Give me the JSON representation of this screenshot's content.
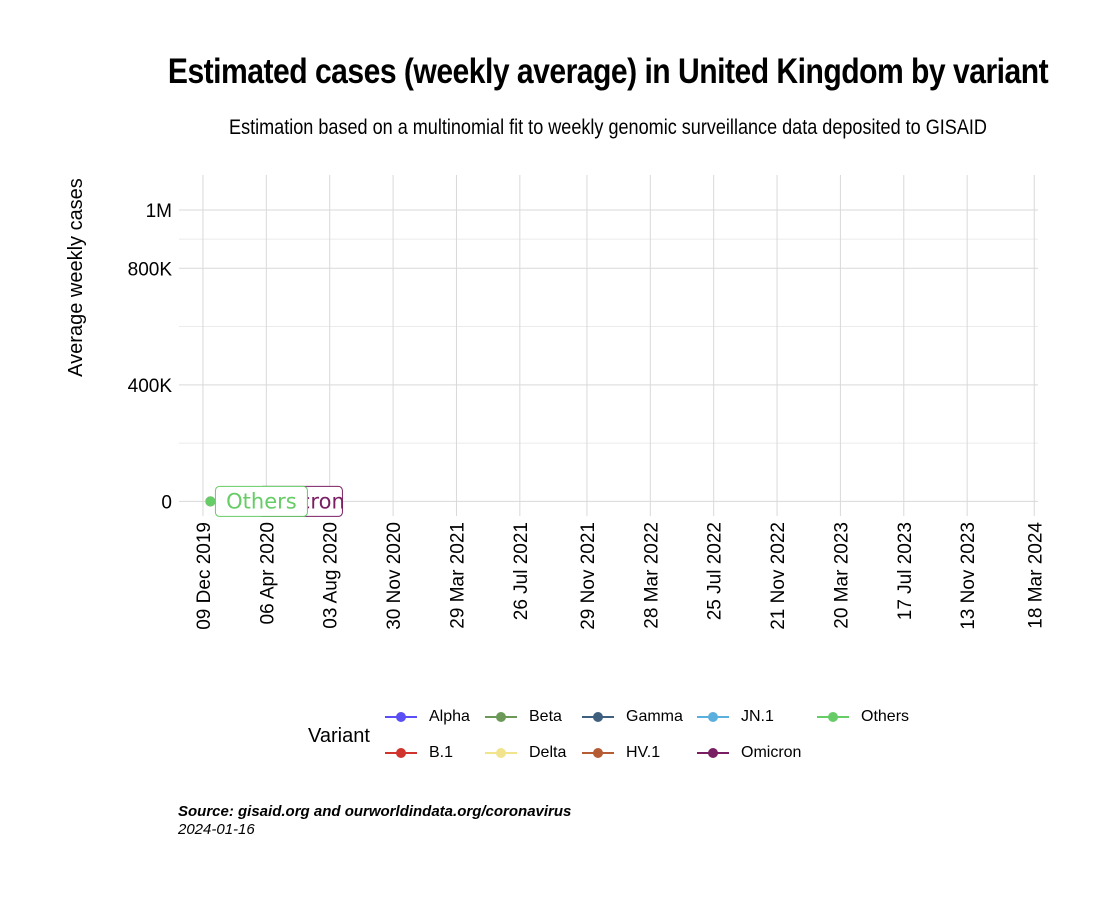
{
  "chart_data": {
    "type": "line",
    "title": "Estimated cases (weekly average) in United Kingdom by variant",
    "subtitle": "Estimation based on a multinomial fit to weekly genomic surveillance data deposited to GISAID",
    "ylabel": "Average weekly cases",
    "xlabel": "",
    "y_ticks": [
      "0",
      "400K",
      "800K",
      "1M"
    ],
    "y_tick_values": [
      0,
      400000,
      800000,
      1000000
    ],
    "ylim": [
      -50000,
      1120000
    ],
    "x_ticks": [
      "09 Dec 2019",
      "06 Apr 2020",
      "03 Aug 2020",
      "30 Nov 2020",
      "29 Mar 2021",
      "26 Jul 2021",
      "29 Nov 2021",
      "28 Mar 2022",
      "25 Jul 2022",
      "21 Nov 2022",
      "20 Mar 2023",
      "17 Jul 2023",
      "13 Nov 2023",
      "18 Mar 2024"
    ],
    "x_tick_dates": [
      "2019-12-09",
      "2020-04-06",
      "2020-08-03",
      "2020-11-30",
      "2021-03-29",
      "2021-07-26",
      "2021-11-29",
      "2022-03-28",
      "2022-07-25",
      "2022-11-21",
      "2023-03-20",
      "2023-07-17",
      "2023-11-13",
      "2024-03-18"
    ],
    "xlim": [
      "2019-10-25",
      "2024-03-25"
    ],
    "grid": true,
    "legend_title": "Variant",
    "legend_position": "bottom",
    "series": [
      {
        "name": "Alpha",
        "color": "#5a4ff5",
        "points": []
      },
      {
        "name": "B.1",
        "color": "#d0342c",
        "points": []
      },
      {
        "name": "Beta",
        "color": "#6b9a58",
        "points": []
      },
      {
        "name": "Delta",
        "color": "#f1e48c",
        "points": []
      },
      {
        "name": "Gamma",
        "color": "#3f5f7f",
        "points": []
      },
      {
        "name": "HV.1",
        "color": "#b65c34",
        "points": []
      },
      {
        "name": "JN.1",
        "color": "#5aafdf",
        "points": []
      },
      {
        "name": "Omicron",
        "color": "#7a1e63",
        "points": [
          {
            "x": "2019-12-23",
            "y": 0
          }
        ]
      },
      {
        "name": "Others",
        "color": "#66cc66",
        "points": [
          {
            "x": "2019-12-23",
            "y": 0
          }
        ]
      }
    ],
    "annotations": [
      {
        "text": "Omicron",
        "series": "Omicron",
        "x": "2019-12-23",
        "y": 0
      },
      {
        "text": "Others",
        "series": "Others",
        "x": "2019-12-23",
        "y": 0
      }
    ]
  },
  "caption": {
    "source": "Source: gisaid.org and ourworldindata.org/coronavirus",
    "date": "2024-01-16"
  }
}
